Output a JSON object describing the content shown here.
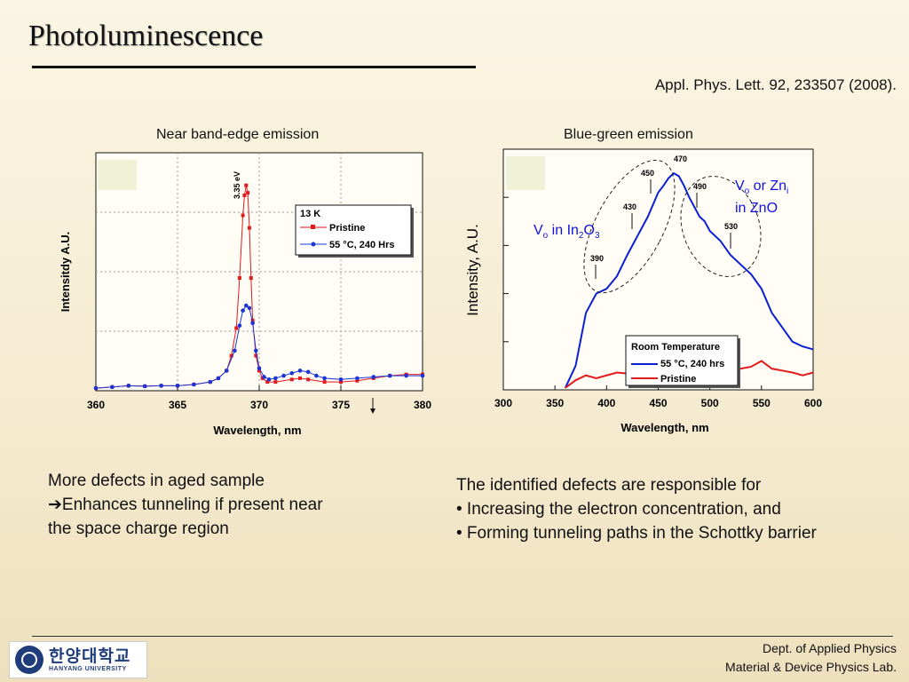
{
  "slide": {
    "title": "Photoluminescence",
    "reference": "Appl. Phys. Lett. 92, 233507 (2008).",
    "left_text": [
      "More defects in aged sample",
      "➔Enhances tunneling if present near",
      "the space charge region"
    ],
    "right_text": [
      "The identified defects are responsible for",
      "• Increasing the electron concentration, and",
      "• Forming tunneling paths in the Schottky barrier"
    ],
    "footer": [
      "Dept. of Applied Physics",
      "Material & Device Physics Lab."
    ],
    "logo": {
      "korean": "한양대학교",
      "english": "HANYANG UNIVERSITY"
    }
  },
  "chart_data": [
    {
      "type": "line",
      "title": "Near band-edge emission",
      "xlabel": "Wavelength, nm",
      "ylabel": "Intensitdy A.U.",
      "xlim": [
        360,
        380
      ],
      "xticks": [
        "360",
        "365",
        "370",
        "375",
        "380"
      ],
      "legend": {
        "header": "13 K",
        "placement": "top-right"
      },
      "annotation": "3.35 eV",
      "series": [
        {
          "name": "Pristine",
          "color": "#e31a1c",
          "marker": "square",
          "x": [
            360,
            361,
            362,
            363,
            364,
            365,
            366,
            367,
            367.5,
            368,
            368.3,
            368.6,
            368.8,
            369,
            369.1,
            369.2,
            369.3,
            369.4,
            369.5,
            369.6,
            369.8,
            370,
            370.2,
            370.5,
            371,
            372,
            372.5,
            373,
            374,
            375,
            376,
            377,
            378,
            379,
            380
          ],
          "y": [
            1,
            1.5,
            2,
            1.8,
            2,
            2,
            2.5,
            3.5,
            5,
            8,
            14,
            25,
            45,
            70,
            78,
            82,
            79,
            65,
            45,
            28,
            14,
            8,
            5,
            3.5,
            3.5,
            4.5,
            5,
            4.5,
            3.5,
            3.5,
            4,
            5,
            6,
            6.5,
            6.5
          ]
        },
        {
          "name": "55 °C, 240 Hrs",
          "color": "#1a35d6",
          "marker": "circle",
          "x": [
            360,
            361,
            362,
            363,
            364,
            365,
            366,
            367,
            367.5,
            368,
            368.5,
            368.8,
            369,
            369.2,
            369.4,
            369.6,
            369.8,
            370,
            370.3,
            370.6,
            371,
            371.5,
            372,
            372.5,
            373,
            373.5,
            374,
            375,
            376,
            377,
            378,
            379,
            380
          ],
          "y": [
            1,
            1.5,
            2,
            1.8,
            2,
            2,
            2.5,
            3.5,
            5,
            8,
            16,
            26,
            32,
            34,
            33,
            27,
            16,
            9,
            5.5,
            4.5,
            5,
            6,
            7,
            8,
            7.5,
            6,
            5,
            4.5,
            5,
            5.5,
            6,
            6,
            6
          ]
        }
      ]
    },
    {
      "type": "line",
      "title": "Blue-green emission",
      "xlabel": "Wavelength, nm",
      "ylabel": "Intensity, A.U.",
      "xlim": [
        300,
        600
      ],
      "xticks": [
        "300",
        "350",
        "400",
        "450",
        "500",
        "550",
        "600"
      ],
      "legend": {
        "header": "Room Temperature",
        "placement": "bottom-right"
      },
      "peak_labels": [
        "390",
        "430",
        "450",
        "470",
        "490",
        "530"
      ],
      "regions": [
        "V",
        "o",
        " in In",
        "2",
        "O",
        "3",
        "V",
        "o",
        " or Zn",
        "i",
        "in ZnO"
      ],
      "series": [
        {
          "name": "55 °C, 240 hrs",
          "color": "#0a1fd6",
          "x": [
            360,
            370,
            380,
            390,
            400,
            410,
            420,
            425,
            430,
            435,
            440,
            450,
            455,
            460,
            465,
            470,
            475,
            480,
            490,
            495,
            500,
            510,
            520,
            530,
            540,
            550,
            560,
            570,
            580,
            590,
            600
          ],
          "y": [
            2,
            25,
            80,
            100,
            105,
            118,
            140,
            150,
            160,
            170,
            180,
            205,
            212,
            220,
            225,
            222,
            212,
            200,
            180,
            175,
            165,
            155,
            140,
            130,
            120,
            105,
            80,
            65,
            50,
            45,
            42
          ]
        },
        {
          "name": "Pristine",
          "color": "#e31a1c",
          "x": [
            360,
            370,
            380,
            390,
            400,
            410,
            420,
            430,
            440,
            450,
            460,
            465,
            470,
            475,
            480,
            490,
            500,
            510,
            520,
            530,
            540,
            550,
            560,
            570,
            580,
            590,
            600
          ],
          "y": [
            2,
            10,
            15,
            12,
            15,
            18,
            17,
            20,
            28,
            35,
            44,
            48,
            45,
            40,
            35,
            30,
            27,
            24,
            22,
            22,
            24,
            30,
            22,
            20,
            18,
            15,
            18
          ]
        }
      ]
    }
  ]
}
